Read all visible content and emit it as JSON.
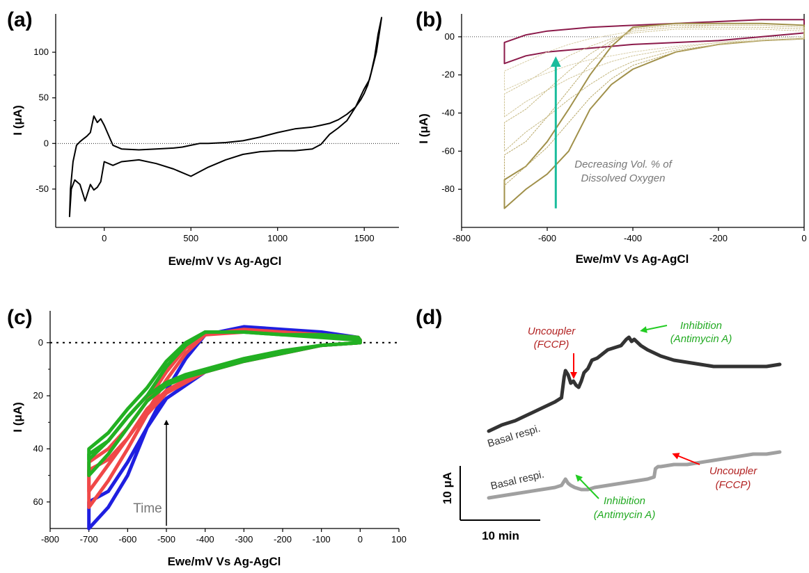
{
  "chart_data": [
    {
      "id": "a",
      "panel_label": "(a)",
      "type": "line",
      "xlabel": "Ewe/mV Vs Ag-AgCl",
      "ylabel": "I (μA)",
      "xlim": [
        -280,
        1700
      ],
      "ylim": [
        -92,
        142
      ],
      "x_ticks": [
        0,
        500,
        1000,
        1500
      ],
      "y_ticks": [
        -50,
        0,
        50,
        100
      ],
      "zero_line": true,
      "series": [
        {
          "color": "#000000",
          "x": [
            -200,
            -190,
            -170,
            -140,
            -110,
            -80,
            -60,
            -40,
            -20,
            0,
            50,
            100,
            200,
            300,
            400,
            500,
            600,
            700,
            800,
            900,
            1000,
            1100,
            1200,
            1250,
            1300,
            1350,
            1400,
            1450,
            1500,
            1530,
            1550,
            1570,
            1590,
            1600,
            1600,
            1580,
            1560,
            1540,
            1520,
            1500,
            1480,
            1450,
            1400,
            1350,
            1300,
            1250,
            1200,
            1100,
            1000,
            900,
            800,
            700,
            600,
            550,
            500,
            450,
            400,
            300,
            200,
            100,
            50,
            0,
            -20,
            -40,
            -60,
            -80,
            -100,
            -120,
            -140,
            -160,
            -180,
            -195,
            -200
          ],
          "y": [
            -80,
            -50,
            -40,
            -45,
            -63,
            -45,
            -51,
            -48,
            -42,
            -20,
            -24,
            -20,
            -18,
            -22,
            -28,
            -36,
            -26,
            -18,
            -12,
            -9,
            -8,
            -8,
            -6,
            -1,
            10,
            17,
            25,
            40,
            60,
            70,
            85,
            100,
            125,
            138,
            138,
            120,
            95,
            78,
            64,
            55,
            48,
            40,
            32,
            26,
            22,
            20,
            18,
            16,
            12,
            7,
            3,
            1,
            0,
            0,
            -2,
            -4,
            -5,
            -6,
            -7,
            -6,
            -2,
            20,
            27,
            23,
            30,
            12,
            8,
            5,
            2,
            -2,
            -20,
            -50,
            -80
          ]
        }
      ]
    },
    {
      "id": "b",
      "panel_label": "(b)",
      "type": "line",
      "xlabel": "Ewe/mV Vs Ag-AgCl",
      "ylabel": "I (μA)",
      "xlim": [
        -800,
        0
      ],
      "ylim": [
        -100,
        12
      ],
      "x_ticks": [
        -800,
        -600,
        -400,
        -200,
        0
      ],
      "y_ticks": [
        0,
        -20,
        -40,
        -60,
        -80
      ],
      "y_tick_labels": [
        "00",
        "-20",
        "-40",
        "-60",
        "-80"
      ],
      "zero_line": true,
      "annotation": {
        "text": [
          "Decreasing Vol. % of",
          "Dissolved Oxygen"
        ],
        "arrow_x": -580,
        "arrow_from_y": -90,
        "arrow_to_y": -13,
        "color": "#1abc9c"
      },
      "series": [
        {
          "color": "#8b1a4a",
          "x": [
            -700,
            -700,
            -650,
            -600,
            -500,
            -400,
            -300,
            -200,
            -100,
            0,
            0,
            -100,
            -200,
            -300,
            -400,
            -500,
            -600,
            -650,
            -700
          ],
          "y": [
            -14,
            -3,
            1,
            3,
            5,
            6,
            7,
            8,
            9,
            9,
            2,
            0,
            -2,
            -3,
            -4,
            -6,
            -8,
            -10,
            -14
          ]
        },
        {
          "color": "#a0904a",
          "x": [
            -700,
            -700,
            -650,
            -600,
            -550,
            -500,
            -450,
            -400,
            -300,
            -200,
            -100,
            0,
            0,
            -100,
            -200,
            -300,
            -400,
            -450,
            -500,
            -550,
            -600,
            -650,
            -700
          ],
          "y": [
            -90,
            -75,
            -68,
            -55,
            -38,
            -20,
            -5,
            5,
            7,
            7,
            7,
            6,
            -1,
            -2,
            -4,
            -8,
            -17,
            -25,
            -38,
            -60,
            -72,
            -80,
            -90
          ]
        },
        {
          "color": "#b8a766",
          "dashed": true,
          "x": [
            -700,
            -700,
            -650,
            -600,
            -550,
            -500,
            -450,
            -400,
            -300,
            -200,
            -100,
            0,
            0,
            -100,
            -200,
            -300,
            -400,
            -450,
            -500,
            -550,
            -600,
            -650,
            -700
          ],
          "y": [
            -78,
            -62,
            -55,
            -42,
            -28,
            -14,
            -3,
            4,
            6,
            6,
            6,
            5,
            -1,
            -2,
            -4,
            -8,
            -15,
            -22,
            -32,
            -45,
            -58,
            -68,
            -78
          ]
        },
        {
          "color": "#c4b67e",
          "dashed": true,
          "x": [
            -700,
            -700,
            -650,
            -600,
            -550,
            -500,
            -450,
            -400,
            -300,
            -200,
            -100,
            0,
            0,
            -100,
            -200,
            -300,
            -400,
            -450,
            -500,
            -550,
            -600,
            -650,
            -700
          ],
          "y": [
            -60,
            -45,
            -38,
            -28,
            -18,
            -9,
            -2,
            3,
            5,
            5,
            5,
            4,
            -1,
            -2,
            -4,
            -7,
            -13,
            -18,
            -25,
            -33,
            -42,
            -50,
            -60
          ]
        },
        {
          "color": "#cfc394",
          "dashed": true,
          "x": [
            -700,
            -700,
            -650,
            -600,
            -550,
            -500,
            -450,
            -400,
            -300,
            -200,
            -100,
            0,
            0,
            -100,
            -200,
            -300,
            -400,
            -450,
            -500,
            -550,
            -600,
            -650,
            -700
          ],
          "y": [
            -42,
            -30,
            -24,
            -17,
            -10,
            -5,
            -1,
            2,
            4,
            4,
            4,
            3,
            -1,
            -2,
            -3,
            -6,
            -10,
            -13,
            -17,
            -22,
            -28,
            -34,
            -42
          ]
        },
        {
          "color": "#d8cea8",
          "dashed": true,
          "x": [
            -700,
            -700,
            -650,
            -600,
            -550,
            -500,
            -450,
            -400,
            -300,
            -200,
            -100,
            0,
            0,
            -100,
            -200,
            -300,
            -400,
            -450,
            -500,
            -550,
            -600,
            -650,
            -700
          ],
          "y": [
            -28,
            -18,
            -13,
            -8,
            -4,
            -1,
            1,
            3,
            5,
            6,
            6,
            5,
            0,
            -1,
            -3,
            -5,
            -8,
            -10,
            -12,
            -15,
            -19,
            -23,
            -28
          ]
        }
      ]
    },
    {
      "id": "c",
      "panel_label": "(c)",
      "type": "line",
      "xlabel": "Ewe/mV Vs Ag-AgCl",
      "ylabel": "I (μA)",
      "xlim": [
        -800,
        100
      ],
      "ylim": [
        -12,
        70
      ],
      "y_inverted": true,
      "x_ticks": [
        -800,
        -700,
        -600,
        -500,
        -400,
        -300,
        -200,
        -100,
        0,
        100
      ],
      "y_ticks": [
        0,
        20,
        40,
        60
      ],
      "zero_line": true,
      "annotation": {
        "text": "Time",
        "arrow_x": -500,
        "arrow_from_y": 69,
        "arrow_to_y": 30,
        "color": "#000000",
        "text_color": "#777777"
      },
      "series": [
        {
          "color": "#1f1fe0",
          "width": 5,
          "x": [
            -700,
            -700,
            -650,
            -600,
            -550,
            -500,
            -450,
            -400,
            -300,
            -200,
            -100,
            -5,
            0,
            0,
            -100,
            -200,
            -300,
            -400,
            -450,
            -500,
            -550,
            -600,
            -650,
            -700
          ],
          "y": [
            70,
            60,
            56,
            45,
            32,
            18,
            6,
            -3,
            -6,
            -5,
            -4,
            -2,
            -1,
            0,
            1,
            4,
            7,
            11,
            16,
            21,
            32,
            50,
            62,
            70
          ]
        },
        {
          "color": "#f04848",
          "width": 5,
          "x": [
            -700,
            -700,
            -650,
            -600,
            -550,
            -500,
            -450,
            -400,
            -300,
            -200,
            -100,
            -5,
            0,
            0,
            -100,
            -200,
            -300,
            -400,
            -450,
            -500,
            -550,
            -600,
            -650,
            -700
          ],
          "y": [
            62,
            48,
            44,
            36,
            26,
            14,
            4,
            -3,
            -5,
            -4,
            -3,
            -2,
            -1,
            0,
            1,
            4,
            7,
            11,
            15,
            19,
            27,
            40,
            52,
            62
          ]
        },
        {
          "color": "#f04848",
          "width": 5,
          "x": [
            -700,
            -700,
            -650,
            -600,
            -550,
            -500,
            -450,
            -400,
            -300,
            -200,
            -100,
            -5,
            0,
            0,
            -100,
            -200,
            -300,
            -400,
            -450,
            -500,
            -550,
            -600,
            -650,
            -700
          ],
          "y": [
            56,
            45,
            40,
            32,
            22,
            11,
            2,
            -3,
            -4,
            -4,
            -3,
            -2,
            -1,
            0,
            1,
            4,
            7,
            11,
            14,
            18,
            25,
            36,
            46,
            56
          ]
        },
        {
          "color": "#22b022",
          "width": 5,
          "x": [
            -700,
            -700,
            -650,
            -600,
            -550,
            -500,
            -450,
            -400,
            -300,
            -200,
            -100,
            -5,
            0,
            0,
            -100,
            -200,
            -300,
            -400,
            -450,
            -500,
            -550,
            -600,
            -650,
            -700
          ],
          "y": [
            50,
            42,
            37,
            28,
            20,
            9,
            1,
            -4,
            -4,
            -3,
            -3,
            -2,
            -1,
            0,
            1,
            4,
            7,
            11,
            13,
            16,
            22,
            32,
            42,
            50
          ]
        },
        {
          "color": "#22b022",
          "width": 5,
          "x": [
            -700,
            -700,
            -650,
            -600,
            -550,
            -500,
            -450,
            -400,
            -300,
            -200,
            -100,
            -5,
            0,
            0,
            -100,
            -200,
            -300,
            -400,
            -450,
            -500,
            -550,
            -600,
            -650,
            -700
          ],
          "y": [
            44,
            40,
            34,
            25,
            17,
            7,
            0,
            -4,
            -4,
            -3,
            -2,
            -1,
            0,
            0,
            1,
            3,
            6,
            10,
            12,
            15,
            20,
            28,
            37,
            44
          ]
        }
      ]
    },
    {
      "id": "d",
      "panel_label": "(d)",
      "type": "line",
      "scale_bar": {
        "y_label": "10 μA",
        "x_label": "10 min"
      },
      "annotations": [
        {
          "text": [
            "Uncoupler",
            "(FCCP)"
          ],
          "color": "#b22222",
          "arrow_color": "#ff0000"
        },
        {
          "text": [
            "Inhibition",
            "(Antimycin A)"
          ],
          "color": "#22aa22",
          "arrow_color": "#22cc22"
        },
        {
          "text": [
            "Inhibition",
            "(Antimycin A)"
          ],
          "color": "#22aa22",
          "arrow_color": "#22cc22"
        },
        {
          "text": [
            "Uncoupler",
            "(FCCP)"
          ],
          "color": "#b22222",
          "arrow_color": "#ff0000"
        }
      ],
      "series_labels": [
        "Basal respi.",
        "Basal respi."
      ],
      "series": [
        {
          "color": "#333333",
          "width": 5,
          "x": [
            0,
            10,
            20,
            30,
            40,
            50,
            55,
            57,
            58,
            60,
            62,
            64,
            66,
            68,
            70,
            72,
            75,
            78,
            82,
            86,
            90,
            95,
            100,
            104,
            106,
            108,
            110,
            115,
            120,
            130,
            140,
            150,
            160,
            170,
            180,
            190,
            200,
            210,
            220
          ],
          "y": [
            40,
            43,
            45,
            48,
            51,
            54,
            56,
            66,
            69,
            67,
            63,
            64,
            62,
            61,
            64,
            68,
            70,
            74,
            75,
            77,
            79,
            80,
            81,
            84,
            85,
            83,
            84,
            81,
            79,
            76,
            74,
            73,
            72,
            71,
            71,
            71,
            71,
            71,
            72
          ]
        },
        {
          "color": "#a0a0a0",
          "width": 5,
          "x": [
            0,
            20,
            40,
            50,
            55,
            57,
            58,
            60,
            62,
            65,
            70,
            75,
            80,
            90,
            100,
            110,
            120,
            125,
            126,
            128,
            130,
            140,
            150,
            160,
            170,
            180,
            190,
            200,
            210,
            220
          ],
          "y": [
            8,
            10,
            12,
            13,
            14,
            16,
            17,
            15,
            14,
            13,
            12,
            12,
            13,
            14,
            15,
            16,
            17,
            18,
            22,
            23,
            23,
            24,
            24,
            25,
            26,
            27,
            28,
            29,
            29,
            30
          ]
        }
      ]
    }
  ]
}
